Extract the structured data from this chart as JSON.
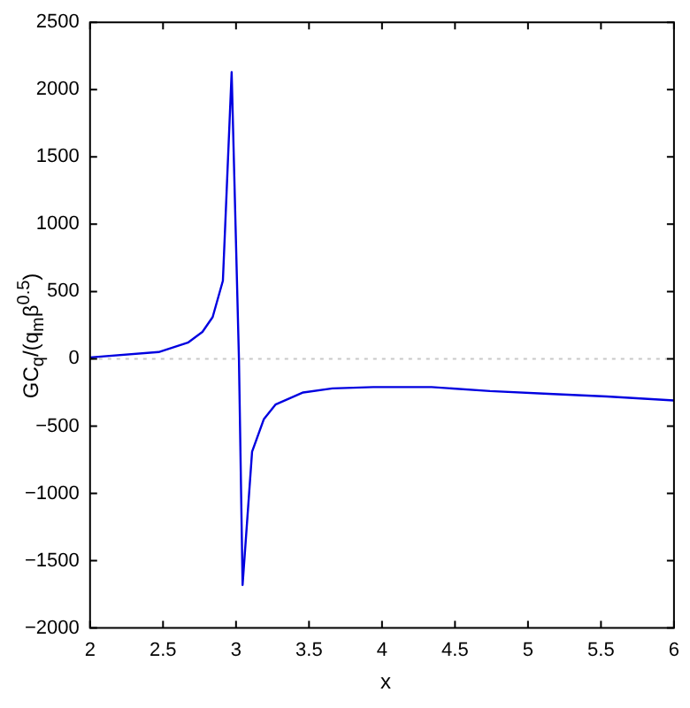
{
  "chart_data": {
    "type": "line",
    "xlabel": "x",
    "ylabel": "GC$_{q}$/(q$_{m}$β$^{0.5}$)",
    "series": [
      {
        "color": "#0000e0",
        "x": [
          2,
          2.47,
          2.67,
          2.77,
          2.84,
          2.91,
          2.97,
          3.02,
          3.045,
          3.11,
          3.19,
          3.27,
          3.46,
          3.66,
          3.94,
          4.34,
          4.74,
          5.14,
          5.54,
          6
        ],
        "values": [
          10,
          50,
          120,
          200,
          310,
          580,
          2130,
          0,
          -1680,
          -690,
          -450,
          -340,
          -250,
          -220,
          -210,
          -210,
          -240,
          -260,
          -280,
          -310
        ]
      }
    ],
    "xlim": [
      2,
      6
    ],
    "xticks": [
      2,
      2.5,
      3,
      3.5,
      4,
      4.5,
      5,
      5.5,
      6
    ],
    "ylim": [
      -2000,
      2500
    ],
    "yticks": [
      -2000,
      -1500,
      -1000,
      -500,
      0,
      500,
      1000,
      1500,
      2000,
      2500
    ],
    "ref_lines": [
      {
        "axis": "y",
        "value": 0,
        "color": "#c8c8c8",
        "line_style": "dotted"
      }
    ],
    "grid": false,
    "legend": false,
    "marker": "none",
    "line_style": "solid"
  }
}
